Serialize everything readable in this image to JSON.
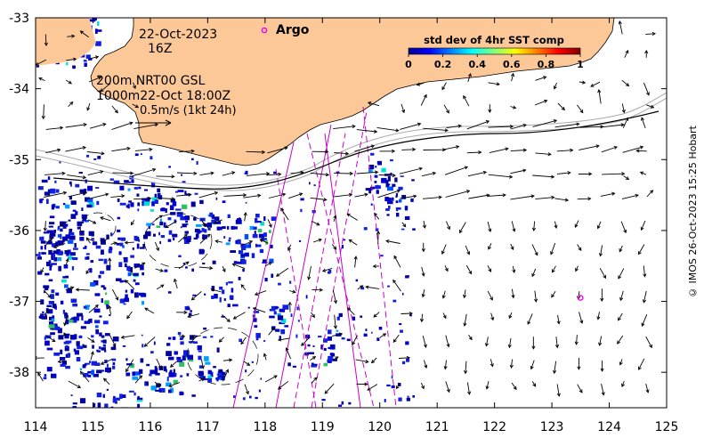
{
  "map": {
    "date_label": "22-Oct-2023",
    "time_label": "16Z",
    "info_line1": "200m  NRT00 GSL",
    "info_line2": "1000m22-Oct 18:00Z",
    "scale_label": "0.5m/s (1kt 24h)",
    "argo_label": "Argo",
    "colorbar": {
      "title": "std dev of 4hr SST comp",
      "ticks": [
        "0",
        "0.2",
        "0.4",
        "0.6",
        "0.8",
        "1"
      ],
      "min": 0,
      "max": 1
    },
    "x_ticks": [
      114,
      115,
      116,
      117,
      118,
      119,
      120,
      121,
      122,
      123,
      124,
      125
    ],
    "y_ticks": [
      -33,
      -34,
      -35,
      -36,
      -37,
      -38
    ],
    "lon_range": [
      114,
      125
    ],
    "lat_range": [
      -38.5,
      -33
    ],
    "argo_floats": [
      {
        "lon": 123.5,
        "lat": -36.95
      }
    ],
    "credit": "© IMOS 26-Oct-2023 15:25 Hobart",
    "colors": {
      "land": "#fcc898",
      "argo": "#ee00ee",
      "track": "#cc00cc",
      "contour": "#aaaaaa"
    }
  }
}
